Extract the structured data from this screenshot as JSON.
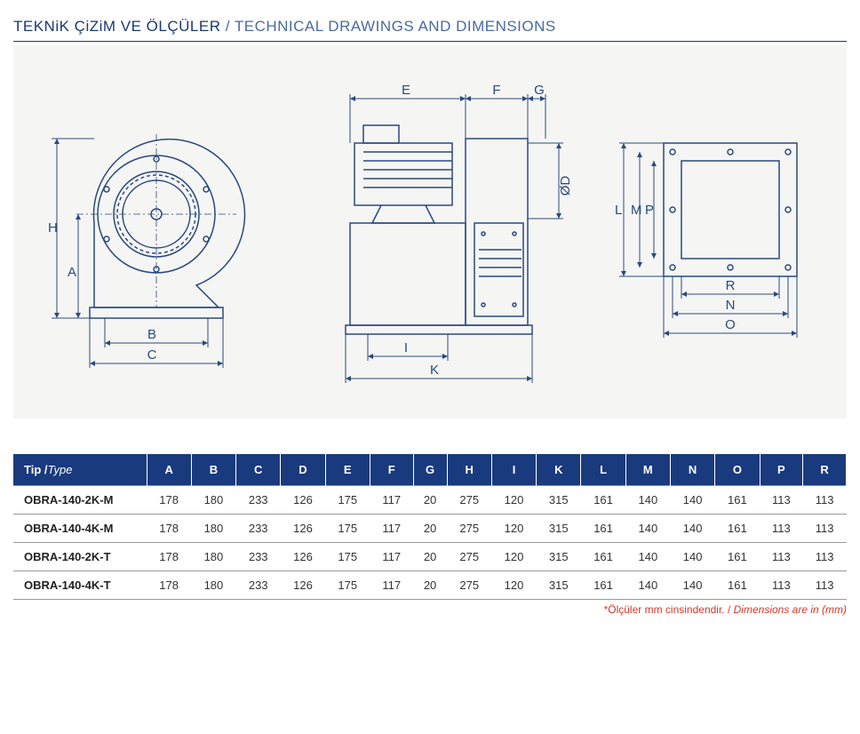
{
  "header": {
    "title_main": "TEKNiK ÇiZiM VE ÖLÇÜLER",
    "title_sub": "/ TECHNICAL DRAWINGS AND DIMENSIONS"
  },
  "colors": {
    "brand_blue": "#1a3a7e",
    "line_blue": "#2a4a7e",
    "diagram_bg": "#f5f5f4",
    "page_bg": "#ffffff",
    "header_text": "#ffffff",
    "body_text": "#333333",
    "grid_line": "#999999",
    "footnote_red": "#d9362a"
  },
  "typography": {
    "title_fontsize_pt": 13,
    "table_fontsize_pt": 10,
    "label_fontsize_pt": 11,
    "font_family": "Arial"
  },
  "diagram": {
    "type": "technical-drawing",
    "views": [
      "front",
      "side",
      "outlet-flange"
    ],
    "dimension_labels": {
      "front": [
        "A",
        "B",
        "C",
        "H"
      ],
      "side": [
        "E",
        "F",
        "G",
        "ØD",
        "I",
        "K"
      ],
      "flange": [
        "L",
        "M",
        "P",
        "R",
        "N",
        "O"
      ]
    }
  },
  "dim_labels": {
    "A": "A",
    "B": "B",
    "C": "C",
    "D": "ØD",
    "E": "E",
    "F": "F",
    "G": "G",
    "H": "H",
    "I": "I",
    "K": "K",
    "L": "L",
    "M": "M",
    "N": "N",
    "O": "O",
    "P": "P",
    "R": "R"
  },
  "table": {
    "header_type_main": "Tip /",
    "header_type_sub": "Type",
    "columns": [
      "A",
      "B",
      "C",
      "D",
      "E",
      "F",
      "G",
      "H",
      "I",
      "K",
      "L",
      "M",
      "N",
      "O",
      "P",
      "R"
    ],
    "rows": [
      {
        "type": "OBRA-140-2K-M",
        "vals": [
          178,
          180,
          233,
          126,
          175,
          117,
          20,
          275,
          120,
          315,
          161,
          140,
          140,
          161,
          113,
          113
        ]
      },
      {
        "type": "OBRA-140-4K-M",
        "vals": [
          178,
          180,
          233,
          126,
          175,
          117,
          20,
          275,
          120,
          315,
          161,
          140,
          140,
          161,
          113,
          113
        ]
      },
      {
        "type": "OBRA-140-2K-T",
        "vals": [
          178,
          180,
          233,
          126,
          175,
          117,
          20,
          275,
          120,
          315,
          161,
          140,
          140,
          161,
          113,
          113
        ]
      },
      {
        "type": "OBRA-140-4K-T",
        "vals": [
          178,
          180,
          233,
          126,
          175,
          117,
          20,
          275,
          120,
          315,
          161,
          140,
          140,
          161,
          113,
          113
        ]
      }
    ]
  },
  "footnote": {
    "star": "*",
    "main": "Ölçüler mm cinsindendir. / ",
    "sub": "Dimensions are in (mm)"
  }
}
